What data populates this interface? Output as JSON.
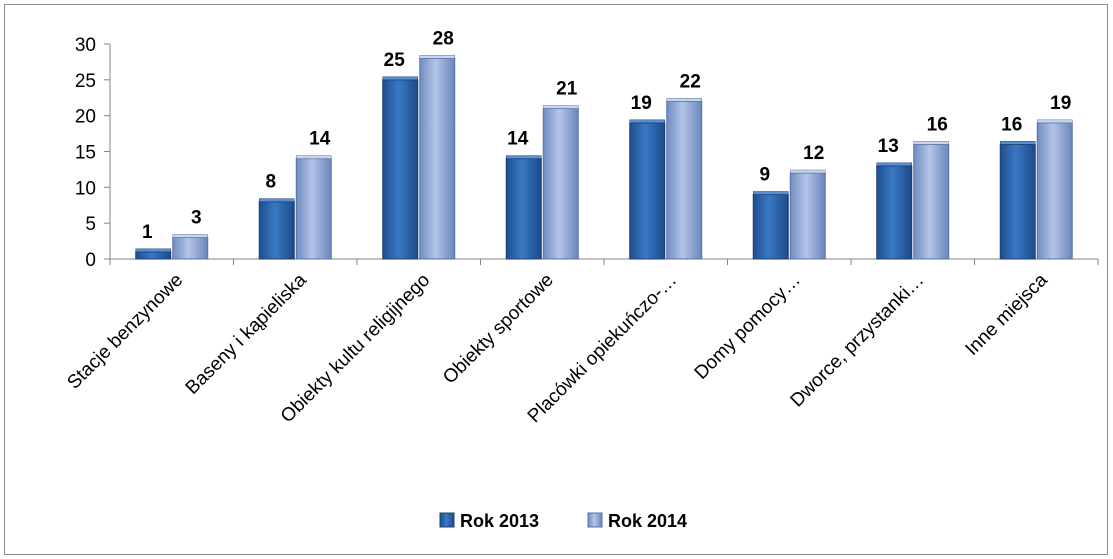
{
  "chart_data": {
    "type": "bar",
    "categories": [
      "Stacje benzynowe",
      "Baseny i kąpieliska",
      "Obiekty kultu religijnego",
      "Obiekty sportowe",
      "Placówki opiekuńczo-…",
      "Domy pomocy…",
      "Dworce, przystanki…",
      "Inne miejsca"
    ],
    "series": [
      {
        "name": "Rok 2013",
        "values": [
          1,
          8,
          25,
          14,
          19,
          9,
          13,
          16
        ],
        "color": "#2e64ad"
      },
      {
        "name": "Rok 2014",
        "values": [
          3,
          14,
          28,
          21,
          22,
          12,
          16,
          19
        ],
        "color": "#8fa6d6"
      }
    ],
    "ylim": [
      0,
      30
    ],
    "yticks": [
      "0",
      "5",
      "10",
      "15",
      "20",
      "25",
      "30"
    ],
    "legend_position": "bottom",
    "grid": false
  }
}
